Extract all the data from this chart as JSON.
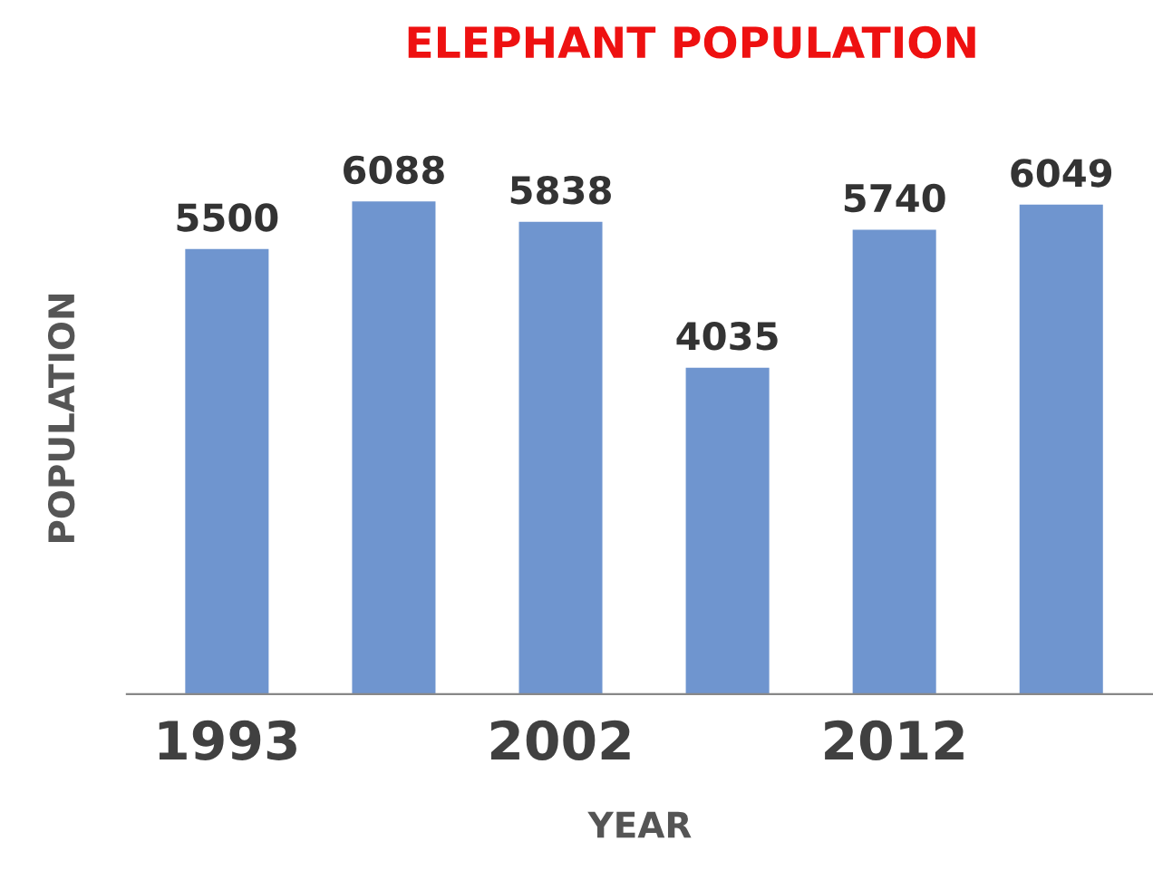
{
  "chart_data": {
    "type": "bar",
    "title": "ELEPHANT POPULATION",
    "xlabel": "YEAR",
    "ylabel": "POPULATION",
    "categories": [
      "1993",
      null,
      "2002",
      null,
      "2012",
      null
    ],
    "values": [
      5500,
      6088,
      5838,
      4035,
      5740,
      6049
    ],
    "color": "#6f95cf",
    "data_labels": true,
    "grid": false
  }
}
